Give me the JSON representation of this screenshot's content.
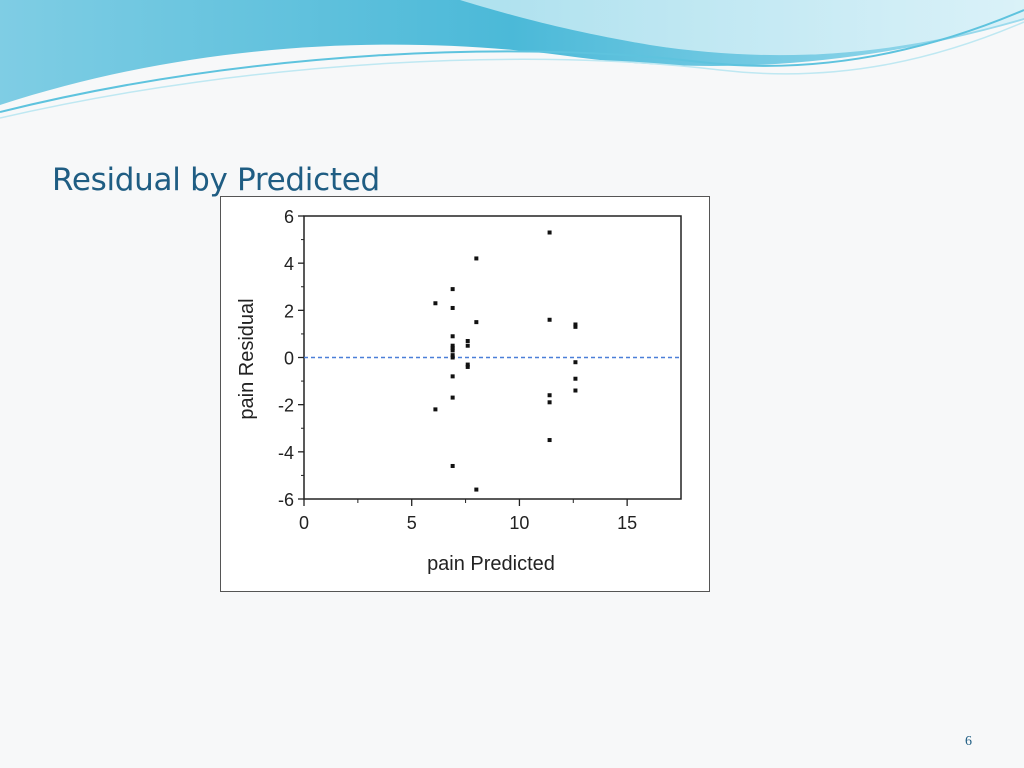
{
  "slide": {
    "title": "Residual by Predicted",
    "page_number": "6"
  },
  "colors": {
    "title": "#1f5d83",
    "wave_primary": "#4bb9d8",
    "wave_light": "#aee2ef",
    "reference_line": "#4a7fd8",
    "points": "#111111"
  },
  "chart_data": {
    "type": "scatter",
    "title": "",
    "xlabel": "pain Predicted",
    "ylabel": "pain Residual",
    "xlim": [
      0,
      17.5
    ],
    "ylim": [
      -6,
      6
    ],
    "xticks": [
      0,
      5,
      10,
      15
    ],
    "yticks": [
      -6,
      -4,
      -2,
      0,
      2,
      4,
      6
    ],
    "reference_line": {
      "y": 0,
      "style": "dashed"
    },
    "grid": false,
    "series": [
      {
        "points": [
          [
            6.1,
            2.3
          ],
          [
            6.1,
            -2.2
          ],
          [
            6.9,
            2.9
          ],
          [
            6.9,
            2.1
          ],
          [
            6.9,
            0.9
          ],
          [
            6.9,
            0.5
          ],
          [
            6.9,
            0.4
          ],
          [
            6.9,
            0.3
          ],
          [
            6.9,
            0.1
          ],
          [
            6.9,
            0.0
          ],
          [
            6.9,
            -0.8
          ],
          [
            6.9,
            -1.7
          ],
          [
            6.9,
            -4.6
          ],
          [
            7.6,
            0.7
          ],
          [
            7.6,
            0.5
          ],
          [
            7.6,
            -0.3
          ],
          [
            7.6,
            -0.4
          ],
          [
            8.0,
            4.2
          ],
          [
            8.0,
            1.5
          ],
          [
            8.0,
            -5.6
          ],
          [
            11.4,
            5.3
          ],
          [
            11.4,
            1.6
          ],
          [
            11.4,
            -1.6
          ],
          [
            11.4,
            -1.9
          ],
          [
            11.4,
            -3.5
          ],
          [
            12.6,
            1.4
          ],
          [
            12.6,
            1.3
          ],
          [
            12.6,
            -0.2
          ],
          [
            12.6,
            -0.9
          ],
          [
            12.6,
            -1.4
          ]
        ]
      }
    ]
  }
}
